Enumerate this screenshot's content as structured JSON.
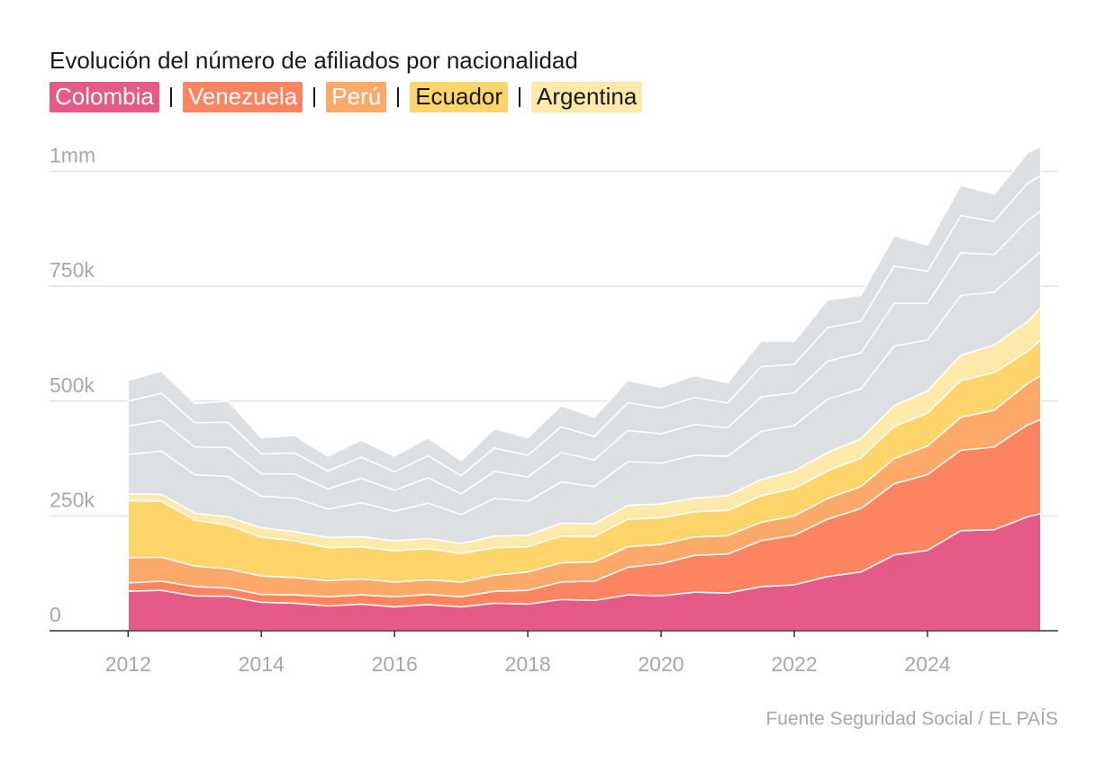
{
  "chart_data": {
    "type": "stacked-area",
    "title": "Evolución del número de afiliados por nacionalidad",
    "source": "Fuente Seguridad Social / EL PAÍS",
    "x": [
      2012,
      2012.5,
      2013,
      2013.5,
      2014,
      2014.5,
      2015,
      2015.5,
      2016,
      2016.5,
      2017,
      2017.5,
      2018,
      2018.5,
      2019,
      2019.5,
      2020,
      2020.5,
      2021,
      2021.5,
      2022,
      2022.5,
      2023,
      2023.5,
      2024,
      2024.5,
      2025,
      2025.5,
      2025.7
    ],
    "xlim": [
      2010.82,
      2025.96
    ],
    "xticks": [
      2012,
      2014,
      2016,
      2018,
      2020,
      2022,
      2024
    ],
    "ylim": [
      0,
      1050000
    ],
    "yticks": [
      0,
      {
        "value": 250000,
        "label": "250k"
      },
      {
        "value": 500000,
        "label": "500k"
      },
      {
        "value": 750000,
        "label": "750k"
      },
      {
        "value": 1000000,
        "label": "1mm"
      }
    ],
    "grid": true,
    "series": [
      {
        "name": "Colombia",
        "color": "#e55a87",
        "text_color": "#ffffff",
        "values": [
          86000,
          88000,
          76000,
          75000,
          62000,
          60000,
          54000,
          58000,
          52000,
          57000,
          52000,
          60000,
          58000,
          68000,
          66000,
          78000,
          76000,
          84000,
          82000,
          96000,
          100000,
          118000,
          128000,
          165000,
          175000,
          218000,
          220000,
          248000,
          255000
        ]
      },
      {
        "name": "Venezuela",
        "color": "#fd8460",
        "text_color": "#ffffff",
        "values": [
          18000,
          20000,
          20000,
          18000,
          17000,
          18000,
          20000,
          20000,
          22000,
          22000,
          22000,
          26000,
          30000,
          38000,
          42000,
          60000,
          70000,
          80000,
          85000,
          100000,
          108000,
          125000,
          138000,
          155000,
          165000,
          175000,
          180000,
          200000,
          205000
        ]
      },
      {
        "name": "Perú",
        "color": "#fda96a",
        "text_color": "#ffffff",
        "values": [
          55000,
          52000,
          45000,
          42000,
          40000,
          38000,
          35000,
          35000,
          32000,
          32000,
          32000,
          35000,
          40000,
          42000,
          42000,
          45000,
          42000,
          40000,
          40000,
          40000,
          42000,
          45000,
          48000,
          55000,
          62000,
          72000,
          80000,
          90000,
          95000
        ]
      },
      {
        "name": "Ecuador",
        "color": "#fdd56b",
        "text_color": "#1a1a1a",
        "values": [
          124000,
          122000,
          100000,
          95000,
          85000,
          80000,
          72000,
          70000,
          68000,
          68000,
          62000,
          60000,
          55000,
          58000,
          55000,
          60000,
          58000,
          55000,
          55000,
          58000,
          60000,
          60000,
          62000,
          70000,
          72000,
          80000,
          82000,
          70000,
          78000
        ]
      },
      {
        "name": "Argentina",
        "color": "#fdeaaa",
        "text_color": "#1a1a1a",
        "values": [
          15000,
          15000,
          15000,
          18000,
          20000,
          20000,
          22000,
          22000,
          22000,
          22000,
          22000,
          25000,
          25000,
          28000,
          28000,
          30000,
          30000,
          30000,
          32000,
          35000,
          38000,
          40000,
          42000,
          45000,
          48000,
          55000,
          60000,
          65000,
          70000
        ]
      },
      {
        "color": "#dde0e3",
        "values": [
          86000,
          94000,
          84000,
          88000,
          69000,
          73000,
          62000,
          74000,
          64000,
          77000,
          63000,
          82000,
          74000,
          90000,
          81000,
          95000,
          89000,
          93000,
          86000,
          105000,
          99000,
          116000,
          109000,
          130000,
          111000,
          130000,
          115000,
          128000,
          123000
        ]
      },
      {
        "color": "#dde0e3",
        "values": [
          62000,
          67000,
          60000,
          63000,
          49000,
          52000,
          44000,
          53000,
          46000,
          55000,
          45000,
          59000,
          53000,
          64000,
          58000,
          68000,
          64000,
          67000,
          62000,
          75000,
          71000,
          83000,
          78000,
          93000,
          80000,
          93000,
          82000,
          92000,
          88000
        ]
      },
      {
        "color": "#dde0e3",
        "values": [
          54000,
          59000,
          53000,
          55000,
          43000,
          46000,
          39000,
          46000,
          40000,
          48000,
          40000,
          51000,
          47000,
          56000,
          51000,
          60000,
          56000,
          59000,
          54000,
          66000,
          62000,
          73000,
          69000,
          81000,
          70000,
          81000,
          72000,
          81000,
          77000
        ]
      },
      {
        "color": "#dde0e3",
        "values": [
          45000,
          48000,
          42000,
          46000,
          35000,
          38000,
          32000,
          37000,
          34000,
          39000,
          32000,
          42000,
          38000,
          46000,
          42000,
          49000,
          45000,
          47000,
          44000,
          55000,
          50000,
          60000,
          56000,
          66000,
          57000,
          66000,
          59000,
          66000,
          64000
        ]
      }
    ]
  }
}
